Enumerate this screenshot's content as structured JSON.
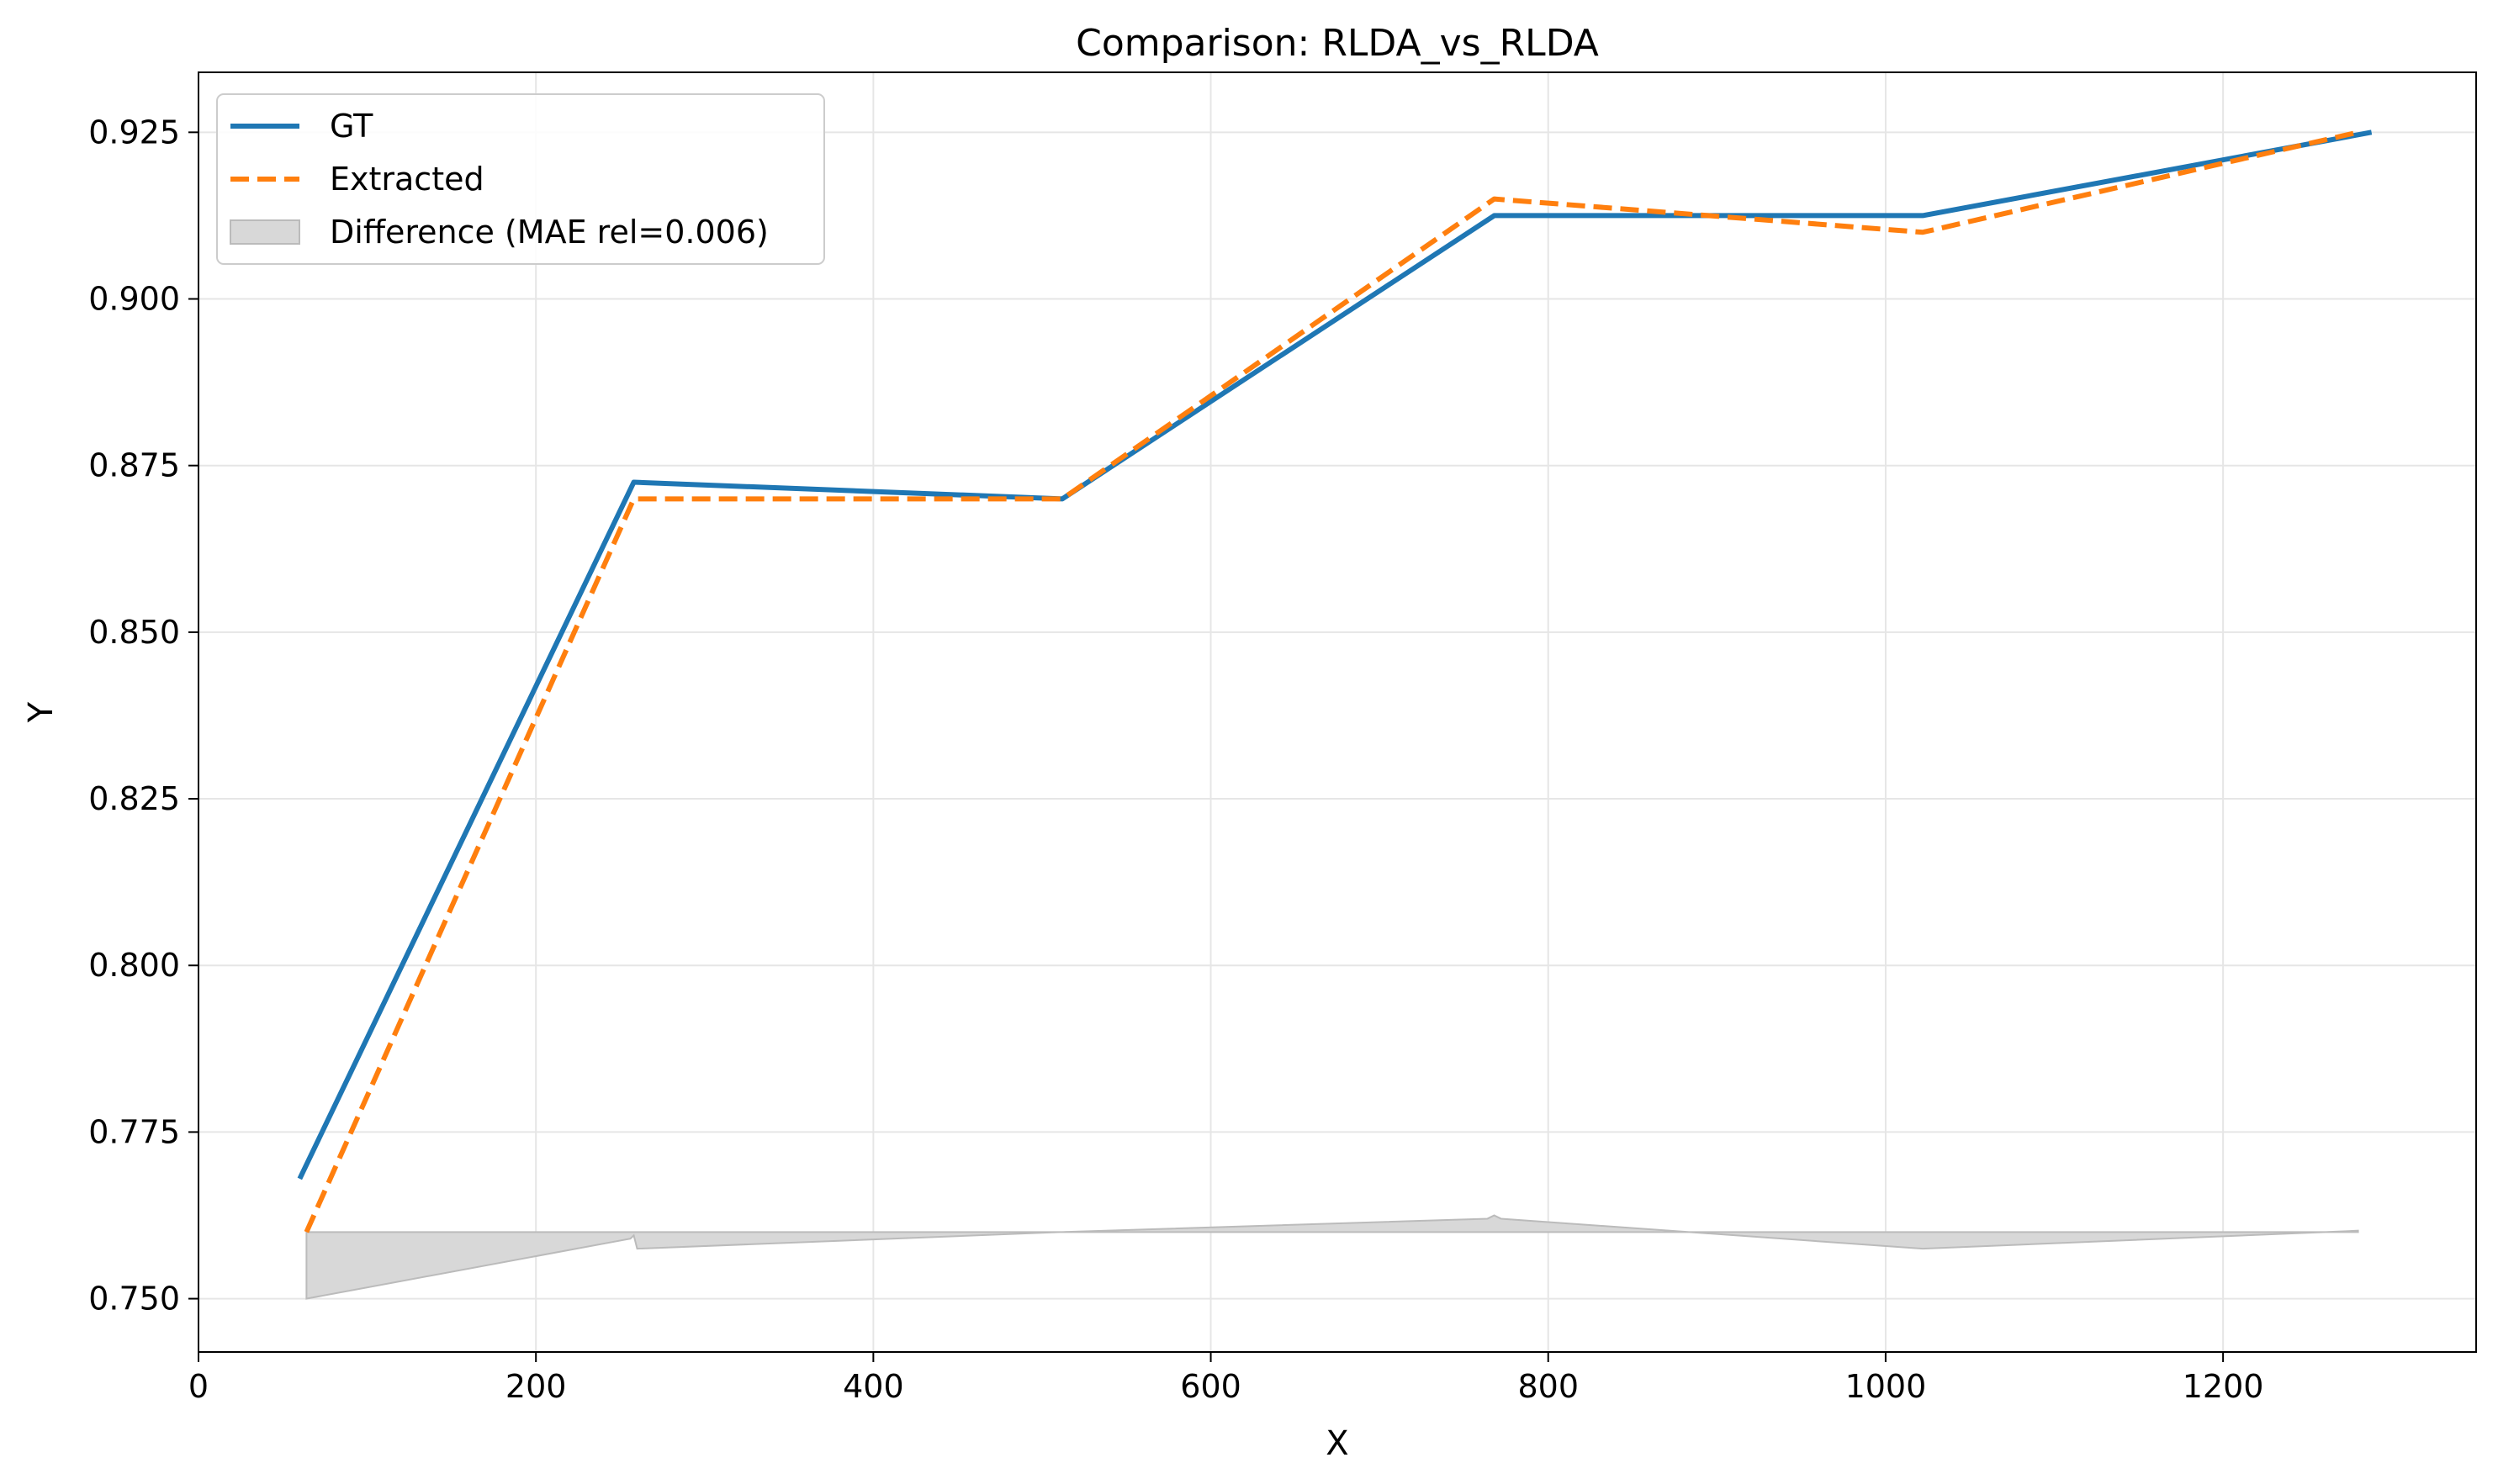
{
  "chart_data": {
    "type": "line",
    "title": "Comparison: RLDA_vs_RLDA",
    "xlabel": "X",
    "ylabel": "Y",
    "xlim": [
      0,
      1350
    ],
    "ylim": [
      0.742,
      0.934
    ],
    "x_ticks": [
      {
        "value": 0,
        "label": "0"
      },
      {
        "value": 200,
        "label": "200"
      },
      {
        "value": 400,
        "label": "400"
      },
      {
        "value": 600,
        "label": "600"
      },
      {
        "value": 800,
        "label": "800"
      },
      {
        "value": 1000,
        "label": "1000"
      },
      {
        "value": 1200,
        "label": "1200"
      }
    ],
    "y_ticks": [
      {
        "value": 0.75,
        "label": "0.750"
      },
      {
        "value": 0.775,
        "label": "0.775"
      },
      {
        "value": 0.8,
        "label": "0.800"
      },
      {
        "value": 0.825,
        "label": "0.825"
      },
      {
        "value": 0.85,
        "label": "0.850"
      },
      {
        "value": 0.875,
        "label": "0.875"
      },
      {
        "value": 0.9,
        "label": "0.900"
      },
      {
        "value": 0.925,
        "label": "0.925"
      }
    ],
    "grid": true,
    "legend_position": "top-left",
    "series": [
      {
        "name": "GT",
        "style": "solid",
        "color": "#1f77b4",
        "x": [
          60,
          258,
          512,
          768,
          1022,
          1288
        ],
        "y": [
          0.768,
          0.8725,
          0.87,
          0.9125,
          0.9125,
          0.925
        ]
      },
      {
        "name": "Extracted",
        "style": "dashed",
        "color": "#ff7f0e",
        "x": [
          64,
          258,
          512,
          768,
          1022,
          1280
        ],
        "y": [
          0.76,
          0.87,
          0.87,
          0.915,
          0.91,
          0.925
        ]
      }
    ],
    "difference": {
      "name": "Difference (MAE rel=0.006)",
      "color": "#bbbbbb",
      "baseline": 0.76,
      "x": [
        64,
        256,
        258,
        260,
        512,
        764,
        768,
        772,
        1022,
        1280
      ],
      "y": [
        0.75,
        0.759,
        0.7595,
        0.7575,
        0.76,
        0.762,
        0.7625,
        0.762,
        0.7575,
        0.7602
      ]
    }
  }
}
